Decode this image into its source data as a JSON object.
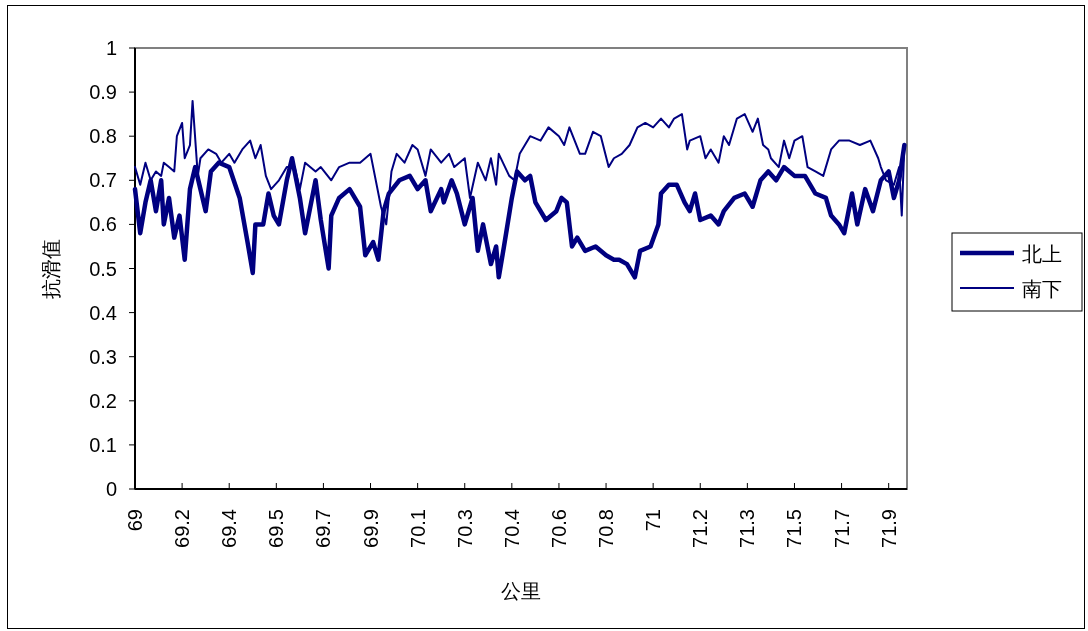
{
  "chart_data": {
    "type": "line",
    "xlabel": "公里",
    "ylabel": "抗滑值",
    "legend": "right",
    "grid": false,
    "marker": "none",
    "line_style": "solid",
    "xlim": [
      69,
      71.95
    ],
    "ylim": [
      0,
      1
    ],
    "xticks": [
      69,
      {
        "value": 69.18,
        "label": "69.2"
      },
      {
        "value": 69.36,
        "label": "69.4"
      },
      {
        "value": 69.54,
        "label": "69.5"
      },
      {
        "value": 69.72,
        "label": "69.7"
      },
      {
        "value": 69.9,
        "label": "69.9"
      },
      {
        "value": 70.08,
        "label": "70.1"
      },
      {
        "value": 70.26,
        "label": "70.3"
      },
      {
        "value": 70.44,
        "label": "70.4"
      },
      {
        "value": 70.62,
        "label": "70.6"
      },
      {
        "value": 70.8,
        "label": "70.8"
      },
      {
        "value": 70.98,
        "label": "71"
      },
      {
        "value": 71.16,
        "label": "71.2"
      },
      {
        "value": 71.34,
        "label": "71.3"
      },
      {
        "value": 71.52,
        "label": "71.5"
      },
      {
        "value": 71.7,
        "label": "71.7"
      },
      {
        "value": 71.88,
        "label": "71.9"
      }
    ],
    "yticks": [
      0,
      0.1,
      0.2,
      0.3,
      0.4,
      0.5,
      0.6,
      0.7,
      0.8,
      0.9,
      1
    ],
    "series": [
      {
        "name": "北上",
        "color": "#000080",
        "x": [
          69.0,
          69.02,
          69.04,
          69.06,
          69.08,
          69.1,
          69.11,
          69.13,
          69.15,
          69.17,
          69.19,
          69.21,
          69.23,
          69.25,
          69.27,
          69.29,
          69.32,
          69.36,
          69.4,
          69.43,
          69.45,
          69.46,
          69.49,
          69.51,
          69.53,
          69.55,
          69.58,
          69.6,
          69.63,
          69.65,
          69.69,
          69.71,
          69.74,
          69.75,
          69.78,
          69.82,
          69.86,
          69.88,
          69.91,
          69.93,
          69.95,
          69.97,
          70.01,
          70.05,
          70.08,
          70.11,
          70.13,
          70.17,
          70.18,
          70.21,
          70.23,
          70.26,
          70.29,
          70.31,
          70.33,
          70.36,
          70.38,
          70.39,
          70.41,
          70.44,
          70.46,
          70.49,
          70.51,
          70.53,
          70.57,
          70.61,
          70.63,
          70.65,
          70.67,
          70.69,
          70.72,
          70.76,
          70.8,
          70.83,
          70.85,
          70.88,
          70.91,
          70.93,
          70.97,
          71.0,
          71.01,
          71.04,
          71.07,
          71.1,
          71.12,
          71.14,
          71.16,
          71.2,
          71.23,
          71.25,
          71.29,
          71.33,
          71.36,
          71.39,
          71.42,
          71.45,
          71.48,
          71.52,
          71.56,
          71.6,
          71.64,
          71.66,
          71.69,
          71.71,
          71.74,
          71.76,
          71.79,
          71.82,
          71.85,
          71.88,
          71.9,
          71.92,
          71.94
        ],
        "values": [
          0.68,
          0.58,
          0.65,
          0.7,
          0.63,
          0.7,
          0.6,
          0.66,
          0.57,
          0.62,
          0.52,
          0.68,
          0.73,
          0.68,
          0.63,
          0.72,
          0.74,
          0.73,
          0.66,
          0.56,
          0.49,
          0.6,
          0.6,
          0.67,
          0.62,
          0.6,
          0.7,
          0.75,
          0.66,
          0.58,
          0.7,
          0.61,
          0.5,
          0.62,
          0.66,
          0.68,
          0.64,
          0.53,
          0.56,
          0.52,
          0.63,
          0.67,
          0.7,
          0.71,
          0.68,
          0.7,
          0.63,
          0.68,
          0.65,
          0.7,
          0.67,
          0.6,
          0.66,
          0.54,
          0.6,
          0.51,
          0.55,
          0.48,
          0.55,
          0.66,
          0.72,
          0.7,
          0.71,
          0.65,
          0.61,
          0.63,
          0.66,
          0.65,
          0.55,
          0.57,
          0.54,
          0.55,
          0.53,
          0.52,
          0.52,
          0.51,
          0.48,
          0.54,
          0.55,
          0.6,
          0.67,
          0.69,
          0.69,
          0.65,
          0.63,
          0.67,
          0.61,
          0.62,
          0.6,
          0.63,
          0.66,
          0.67,
          0.64,
          0.7,
          0.72,
          0.7,
          0.73,
          0.71,
          0.71,
          0.67,
          0.66,
          0.62,
          0.6,
          0.58,
          0.67,
          0.6,
          0.68,
          0.63,
          0.7,
          0.72,
          0.66,
          0.7,
          0.78
        ]
      },
      {
        "name": "南下",
        "color": "#000080",
        "x": [
          69.0,
          69.02,
          69.04,
          69.06,
          69.08,
          69.1,
          69.11,
          69.13,
          69.15,
          69.16,
          69.18,
          69.19,
          69.21,
          69.22,
          69.24,
          69.25,
          69.28,
          69.31,
          69.33,
          69.36,
          69.38,
          69.41,
          69.44,
          69.46,
          69.48,
          69.5,
          69.52,
          69.55,
          69.58,
          69.61,
          69.63,
          69.65,
          69.69,
          69.71,
          69.75,
          69.78,
          69.82,
          69.86,
          69.9,
          69.94,
          69.96,
          69.98,
          70.0,
          70.03,
          70.06,
          70.08,
          70.11,
          70.13,
          70.17,
          70.2,
          70.22,
          70.26,
          70.28,
          70.31,
          70.34,
          70.36,
          70.38,
          70.39,
          70.43,
          70.45,
          70.47,
          70.51,
          70.55,
          70.58,
          70.62,
          70.64,
          70.66,
          70.7,
          70.72,
          70.75,
          70.78,
          70.81,
          70.83,
          70.86,
          70.89,
          70.92,
          70.95,
          70.98,
          71.01,
          71.04,
          71.06,
          71.09,
          71.11,
          71.12,
          71.16,
          71.18,
          71.2,
          71.23,
          71.25,
          71.27,
          71.3,
          71.33,
          71.36,
          71.38,
          71.4,
          71.42,
          71.43,
          71.46,
          71.48,
          71.5,
          71.52,
          71.55,
          71.57,
          71.6,
          71.63,
          71.66,
          71.69,
          71.73,
          71.77,
          71.81,
          71.84,
          71.85,
          71.87,
          71.9,
          71.92,
          71.93,
          71.94
        ],
        "values": [
          0.73,
          0.69,
          0.74,
          0.7,
          0.72,
          0.71,
          0.74,
          0.73,
          0.72,
          0.8,
          0.83,
          0.75,
          0.78,
          0.88,
          0.71,
          0.75,
          0.77,
          0.76,
          0.74,
          0.76,
          0.74,
          0.77,
          0.79,
          0.75,
          0.78,
          0.71,
          0.68,
          0.7,
          0.73,
          0.73,
          0.68,
          0.74,
          0.72,
          0.73,
          0.7,
          0.73,
          0.74,
          0.74,
          0.76,
          0.64,
          0.6,
          0.72,
          0.76,
          0.74,
          0.78,
          0.77,
          0.71,
          0.77,
          0.74,
          0.76,
          0.73,
          0.75,
          0.66,
          0.74,
          0.7,
          0.75,
          0.69,
          0.76,
          0.71,
          0.7,
          0.76,
          0.8,
          0.79,
          0.82,
          0.8,
          0.78,
          0.82,
          0.76,
          0.76,
          0.81,
          0.8,
          0.73,
          0.75,
          0.76,
          0.78,
          0.82,
          0.83,
          0.82,
          0.84,
          0.82,
          0.84,
          0.85,
          0.77,
          0.79,
          0.8,
          0.75,
          0.77,
          0.74,
          0.8,
          0.78,
          0.84,
          0.85,
          0.81,
          0.84,
          0.78,
          0.77,
          0.75,
          0.73,
          0.79,
          0.75,
          0.79,
          0.8,
          0.73,
          0.72,
          0.71,
          0.77,
          0.79,
          0.79,
          0.78,
          0.79,
          0.75,
          0.73,
          0.7,
          0.69,
          0.73,
          0.62,
          0.78
        ]
      }
    ]
  }
}
